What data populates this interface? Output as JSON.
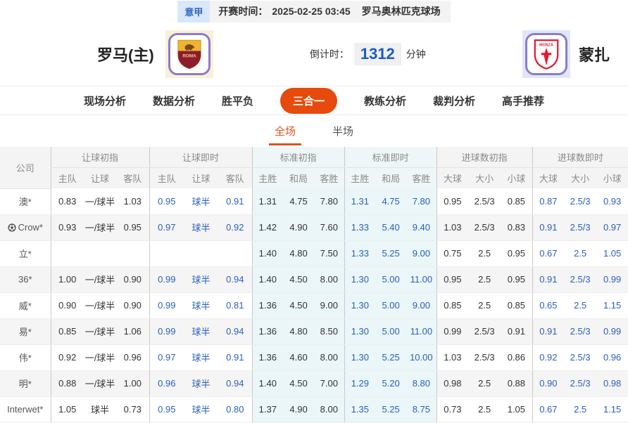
{
  "top_bar": {
    "league": "意甲",
    "kickoff_label": "开赛时间：",
    "kickoff_time": "2025-02-25 03:45",
    "venue": "罗马奥林匹克球场"
  },
  "match": {
    "home_name": "罗马(主)",
    "away_name": "蒙扎",
    "countdown_label": "倒计时：",
    "countdown_value": "1312",
    "countdown_unit": "分钟",
    "home_logo": "roma-crest",
    "away_logo": "monza-crest"
  },
  "nav_tabs": [
    {
      "label": "现场分析",
      "active": false
    },
    {
      "label": "数据分析",
      "active": false
    },
    {
      "label": "胜平负",
      "active": false
    },
    {
      "label": "三合一",
      "active": true
    },
    {
      "label": "教练分析",
      "active": false
    },
    {
      "label": "裁判分析",
      "active": false
    },
    {
      "label": "高手推荐",
      "active": false
    }
  ],
  "sub_tabs": [
    {
      "label": "全场",
      "active": true
    },
    {
      "label": "半场",
      "active": false
    }
  ],
  "colors": {
    "accent_orange": "#e64a0c",
    "subtab_orange": "#d9541e",
    "live_blue": "#2a5fbe",
    "countdown_blue": "#1c5bc4",
    "tint_cyan": "#eaf6f8",
    "crest_border_purple": "#8c7cc8"
  },
  "table": {
    "company_header": "公司",
    "groups": [
      {
        "label": "让球初指",
        "cols": [
          "主队",
          "让球",
          "客队"
        ],
        "live": false,
        "tint": false
      },
      {
        "label": "让球即时",
        "cols": [
          "主队",
          "让球",
          "客队"
        ],
        "live": true,
        "tint": false
      },
      {
        "label": "标准初指",
        "cols": [
          "主胜",
          "和局",
          "客胜"
        ],
        "live": false,
        "tint": true
      },
      {
        "label": "标准即时",
        "cols": [
          "主胜",
          "和局",
          "客胜"
        ],
        "live": true,
        "tint": true
      },
      {
        "label": "进球数初指",
        "cols": [
          "大球",
          "大小",
          "小球"
        ],
        "live": false,
        "tint": false
      },
      {
        "label": "进球数即时",
        "cols": [
          "大球",
          "大小",
          "小球"
        ],
        "live": true,
        "tint": false
      }
    ],
    "rows": [
      {
        "company": "澳*",
        "icon": null,
        "values": [
          [
            "0.83",
            "一/球半",
            "1.03"
          ],
          [
            "0.95",
            "球半",
            "0.91"
          ],
          [
            "1.31",
            "4.75",
            "7.80"
          ],
          [
            "1.31",
            "4.75",
            "7.80"
          ],
          [
            "0.95",
            "2.5/3",
            "0.85"
          ],
          [
            "0.87",
            "2.5/3",
            "0.93"
          ]
        ]
      },
      {
        "company": "Crow*",
        "icon": "soccer-ball",
        "values": [
          [
            "0.93",
            "一/球半",
            "0.95"
          ],
          [
            "0.97",
            "球半",
            "0.92"
          ],
          [
            "1.42",
            "4.90",
            "7.60"
          ],
          [
            "1.33",
            "5.40",
            "9.40"
          ],
          [
            "1.03",
            "2.5/3",
            "0.83"
          ],
          [
            "0.91",
            "2.5/3",
            "0.97"
          ]
        ]
      },
      {
        "company": "立*",
        "icon": null,
        "values": [
          [
            "",
            "",
            ""
          ],
          [
            "",
            "",
            ""
          ],
          [
            "1.40",
            "4.80",
            "7.50"
          ],
          [
            "1.33",
            "5.25",
            "9.00"
          ],
          [
            "0.75",
            "2.5",
            "0.95"
          ],
          [
            "0.67",
            "2.5",
            "1.05"
          ]
        ]
      },
      {
        "company": "36*",
        "icon": null,
        "values": [
          [
            "1.00",
            "一/球半",
            "0.90"
          ],
          [
            "0.99",
            "球半",
            "0.94"
          ],
          [
            "1.40",
            "4.50",
            "8.00"
          ],
          [
            "1.30",
            "5.00",
            "11.00"
          ],
          [
            "0.95",
            "2.5",
            "0.95"
          ],
          [
            "0.91",
            "2.5/3",
            "0.99"
          ]
        ]
      },
      {
        "company": "威*",
        "icon": null,
        "values": [
          [
            "0.90",
            "一/球半",
            "0.90"
          ],
          [
            "0.99",
            "球半",
            "0.81"
          ],
          [
            "1.36",
            "4.50",
            "9.00"
          ],
          [
            "1.30",
            "5.00",
            "9.00"
          ],
          [
            "0.85",
            "2.5",
            "0.85"
          ],
          [
            "0.65",
            "2.5",
            "1.15"
          ]
        ]
      },
      {
        "company": "易*",
        "icon": null,
        "values": [
          [
            "0.85",
            "一/球半",
            "1.06"
          ],
          [
            "0.99",
            "球半",
            "0.94"
          ],
          [
            "1.36",
            "4.80",
            "8.50"
          ],
          [
            "1.30",
            "5.00",
            "11.00"
          ],
          [
            "0.99",
            "2.5/3",
            "0.91"
          ],
          [
            "0.91",
            "2.5/3",
            "0.99"
          ]
        ]
      },
      {
        "company": "伟*",
        "icon": null,
        "values": [
          [
            "0.92",
            "一/球半",
            "0.96"
          ],
          [
            "0.97",
            "球半",
            "0.91"
          ],
          [
            "1.36",
            "4.60",
            "8.00"
          ],
          [
            "1.30",
            "5.25",
            "10.00"
          ],
          [
            "1.03",
            "2.5/3",
            "0.86"
          ],
          [
            "0.92",
            "2.5/3",
            "0.96"
          ]
        ]
      },
      {
        "company": "明*",
        "icon": null,
        "values": [
          [
            "0.88",
            "一/球半",
            "1.00"
          ],
          [
            "0.96",
            "球半",
            "0.94"
          ],
          [
            "1.40",
            "4.50",
            "7.00"
          ],
          [
            "1.29",
            "5.20",
            "8.80"
          ],
          [
            "0.98",
            "2.5",
            "0.88"
          ],
          [
            "0.90",
            "2.5/3",
            "0.98"
          ]
        ]
      },
      {
        "company": "Interwet*",
        "icon": null,
        "values": [
          [
            "1.05",
            "球半",
            "0.73"
          ],
          [
            "0.95",
            "球半",
            "0.80"
          ],
          [
            "1.37",
            "4.90",
            "8.00"
          ],
          [
            "1.35",
            "5.25",
            "8.75"
          ],
          [
            "0.73",
            "2.5",
            "1.05"
          ],
          [
            "0.67",
            "2.5",
            "1.15"
          ]
        ]
      }
    ]
  }
}
